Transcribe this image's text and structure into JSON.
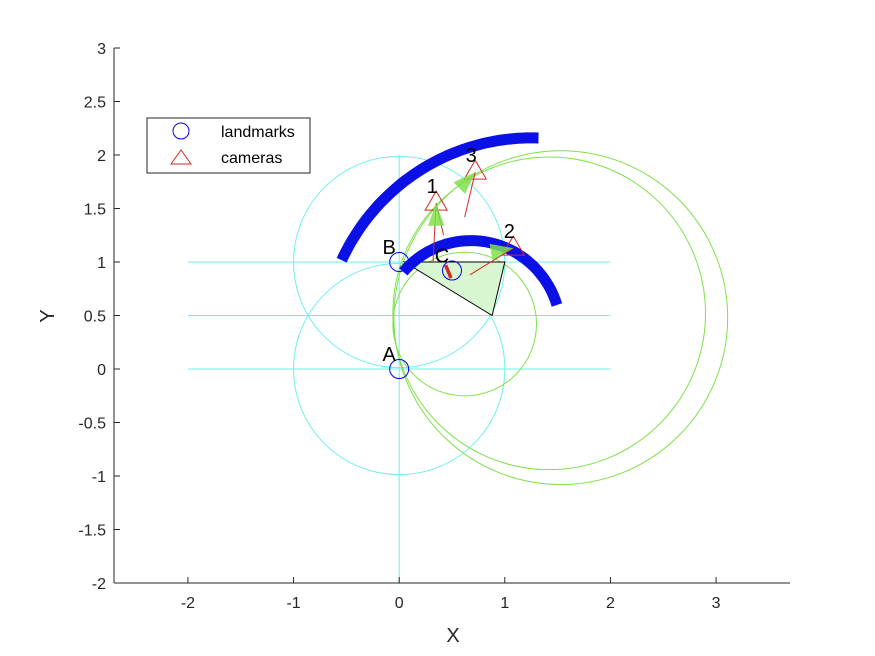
{
  "chart_data": {
    "type": "scatter",
    "xlabel": "X",
    "ylabel": "Y",
    "xlim": [
      -2.7,
      3.7
    ],
    "ylim": [
      -2,
      3
    ],
    "xticks": [
      -2,
      -1,
      0,
      1,
      2,
      3
    ],
    "yticks": [
      -2,
      -1.5,
      -1,
      -0.5,
      0,
      0.5,
      1,
      1.5,
      2,
      2.5,
      3
    ],
    "xtick_labels": [
      "-2",
      "-1",
      "0",
      "1",
      "2",
      "3"
    ],
    "ytick_labels": [
      "-2",
      "-1.5",
      "-1",
      "-0.5",
      "0",
      "0.5",
      "1",
      "1.5",
      "2",
      "2.5",
      "3"
    ],
    "grid": false,
    "legend": {
      "placement": "top-left",
      "entries": [
        {
          "label": "landmarks",
          "marker": "circle",
          "color": "#0000ff"
        },
        {
          "label": "cameras",
          "marker": "triangle",
          "color": "#d62728"
        }
      ]
    },
    "colors": {
      "cyan": "#6ef0f0",
      "green": "#7fe04a",
      "blue": "#0a10e6",
      "red": "#d62728",
      "sector_fill": "#d8f7d0"
    },
    "landmarks": [
      {
        "label": "A",
        "x": 0,
        "y": 0
      },
      {
        "label": "B",
        "x": 0,
        "y": 1
      },
      {
        "label": "C",
        "x": 0.5,
        "y": 0.92
      }
    ],
    "cameras": [
      {
        "label": "1",
        "x": 0.35,
        "y": 1.55,
        "heading_deg": 90
      },
      {
        "label": "2",
        "x": 1.08,
        "y": 1.13,
        "heading_deg": 10
      },
      {
        "label": "3",
        "x": 0.72,
        "y": 1.84,
        "heading_deg": 45
      }
    ],
    "horizontal_lines": [
      {
        "y": 1,
        "x0": -2,
        "x1": 2
      },
      {
        "y": 0.5,
        "x0": -2,
        "x1": 2
      },
      {
        "y": 0,
        "x0": -2,
        "x1": 2
      }
    ],
    "vertical_line": {
      "x": 0,
      "y0": -2,
      "y1": 2
    },
    "cyan_circles": [
      {
        "cx": 0,
        "cy": 1,
        "r": 1
      },
      {
        "cx": 0,
        "cy": 0,
        "r": 1
      }
    ],
    "green_circles": [
      {
        "cx": 1.42,
        "cy": 0.52,
        "r": 1.48
      },
      {
        "cx": 1.53,
        "cy": 0.48,
        "r": 1.58
      }
    ],
    "green_small_arc": {
      "cx": 0.62,
      "cy": 0.42,
      "r": 0.68
    },
    "blue_arcs": [
      {
        "cx": 1.25,
        "cy": 0.18,
        "r": 1.98,
        "start_deg": 155,
        "end_deg": 88
      },
      {
        "cx": 0.68,
        "cy": 0.35,
        "r": 0.85,
        "start_deg": 139,
        "end_deg": 17
      }
    ],
    "sector": {
      "points": [
        [
          0.05,
          1.0
        ],
        [
          1.0,
          1.0
        ],
        [
          0.88,
          0.5
        ]
      ]
    }
  }
}
